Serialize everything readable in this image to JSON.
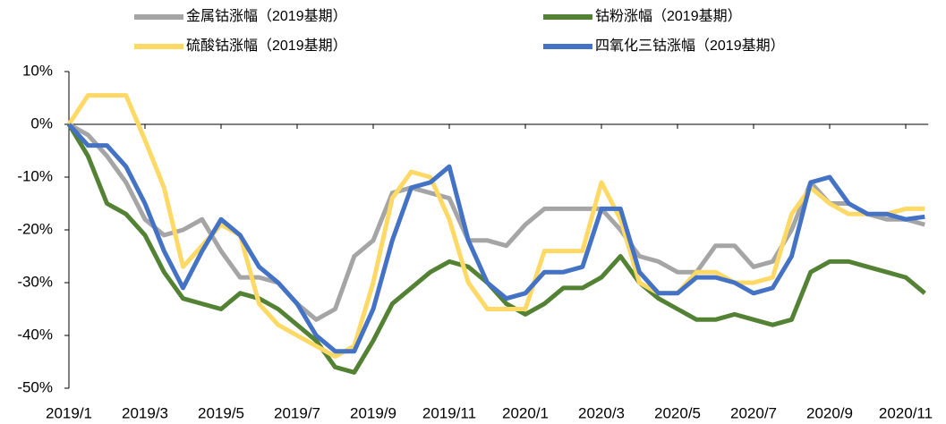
{
  "chart_data": {
    "type": "line",
    "categories": [
      "2019/1",
      null,
      null,
      null,
      "2019/3",
      null,
      null,
      null,
      "2019/5",
      null,
      null,
      null,
      "2019/7",
      null,
      null,
      null,
      "2019/9",
      null,
      null,
      null,
      "2019/11",
      null,
      null,
      null,
      "2020/1",
      null,
      null,
      null,
      "2020/3",
      null,
      null,
      null,
      "2020/5",
      null,
      null,
      null,
      "2020/7",
      null,
      null,
      null,
      "2020/9",
      null,
      null,
      null,
      "2020/11",
      null
    ],
    "series": [
      {
        "name": "金属钴涨幅（2019基期）",
        "color": "#a5a5a5",
        "values": [
          0,
          -2,
          -6,
          -11,
          -18,
          -21,
          -20,
          -18,
          -24,
          -29,
          -29,
          -30,
          -34,
          -37,
          -35,
          -25,
          -22,
          -13,
          -12,
          -13,
          -14,
          -22,
          -22,
          -23,
          -19,
          -16,
          -16,
          -16,
          -16,
          -20,
          -25,
          -26,
          -28,
          -28,
          -23,
          -23,
          -27,
          -26,
          -20,
          -11,
          -15,
          -15,
          -17,
          -18,
          -18,
          -19
        ]
      },
      {
        "name": "钴粉涨幅（2019基期）",
        "color": "#548235",
        "values": [
          0,
          -6,
          -15,
          -17,
          -21,
          -28,
          -33,
          -34,
          -35,
          -32,
          -33,
          -35,
          -38,
          -41,
          -46,
          -47,
          -41,
          -34,
          -31,
          -28,
          -26,
          -27,
          -30,
          -34,
          -36,
          -34,
          -31,
          -31,
          -29,
          -25,
          -30,
          -33,
          -35,
          -37,
          -37,
          -36,
          -37,
          -38,
          -37,
          -28,
          -26,
          -26,
          -27,
          -28,
          -29,
          -32
        ]
      },
      {
        "name": "硫酸钴涨幅（2019基期）",
        "color": "#ffd966",
        "values": [
          0,
          5.5,
          5.5,
          5.5,
          -3,
          -12,
          -27,
          -23,
          -19,
          -21,
          -34,
          -38,
          -40,
          -42,
          -44,
          -42,
          -30,
          -14,
          -9,
          -10,
          -18,
          -30,
          -35,
          -35,
          -35,
          -24,
          -24,
          -24,
          -11,
          -18,
          -30,
          -32,
          -32,
          -28,
          -28,
          -30,
          -30,
          -29,
          -17,
          -12,
          -15,
          -17,
          -17,
          -17,
          -16,
          -16
        ]
      },
      {
        "name": "四氧化三钴涨幅（2019基期）",
        "color": "#4472c4",
        "values": [
          0,
          -4,
          -4,
          -8,
          -15,
          -24,
          -31,
          -24,
          -18,
          -21,
          -27,
          -30,
          -34,
          -40,
          -43,
          -43,
          -35,
          -22,
          -12,
          -11,
          -8,
          -22,
          -30,
          -33,
          -32,
          -28,
          -28,
          -27,
          -16,
          -16,
          -28,
          -32,
          -32,
          -29,
          -29,
          -30,
          -32,
          -31,
          -25,
          -11,
          -10,
          -15,
          -17,
          -17,
          -18,
          -17.5
        ]
      }
    ],
    "ylim": [
      -50,
      10
    ],
    "yticks": [
      {
        "value": 10,
        "label": "10%"
      },
      {
        "value": 0,
        "label": "0%"
      },
      {
        "value": -10,
        "label": "-10%"
      },
      {
        "value": -20,
        "label": "-20%"
      },
      {
        "value": -30,
        "label": "-30%"
      },
      {
        "value": -40,
        "label": "-40%"
      },
      {
        "value": -50,
        "label": "-50%"
      }
    ],
    "grid": false,
    "legend": "top"
  }
}
